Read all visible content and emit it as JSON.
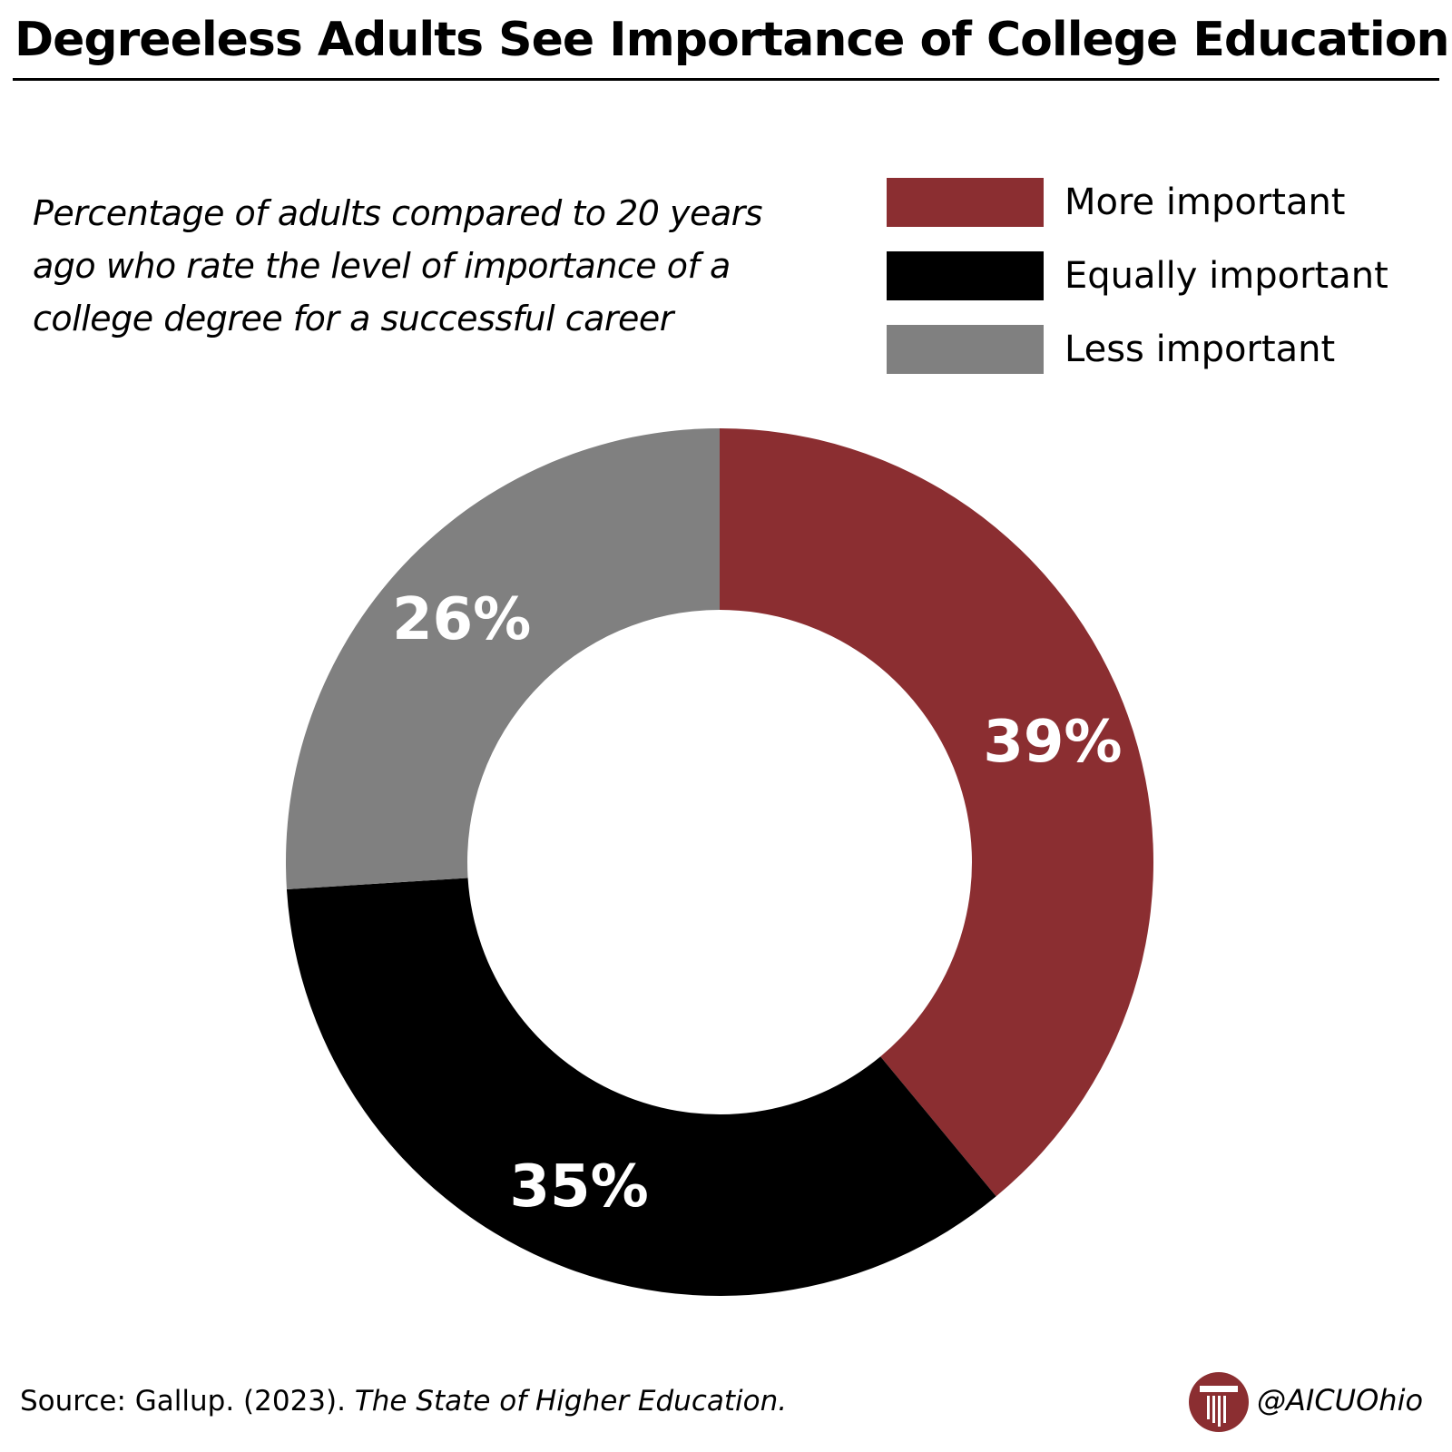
{
  "title": "Degreeless Adults See Importance of College Education",
  "subtitle": "Percentage of adults compared to 20 years ago who rate the level of importance of a college degree for a successful career",
  "legend": [
    {
      "label": "More important",
      "color": "#8b2e31"
    },
    {
      "label": "Equally important",
      "color": "#000000"
    },
    {
      "label": "Less important",
      "color": "#808080"
    }
  ],
  "chart_data": {
    "type": "pie",
    "variant": "donut",
    "title": "Degreeless Adults See Importance of College Education",
    "categories": [
      "More important",
      "Equally important",
      "Less important"
    ],
    "values": [
      39,
      35,
      26
    ],
    "labels": [
      "39%",
      "35%",
      "26%"
    ],
    "colors": [
      "#8b2e31",
      "#000000",
      "#808080"
    ],
    "start": "12 o'clock, clockwise",
    "legend_position": "top-right"
  },
  "source": {
    "prefix": "Source: Gallup. (2023). ",
    "title": "The State of Higher Education."
  },
  "credit": {
    "handle": "@AICUOhio",
    "logo_icon": "column-pillar-icon",
    "logo_color": "#8b2e31"
  }
}
